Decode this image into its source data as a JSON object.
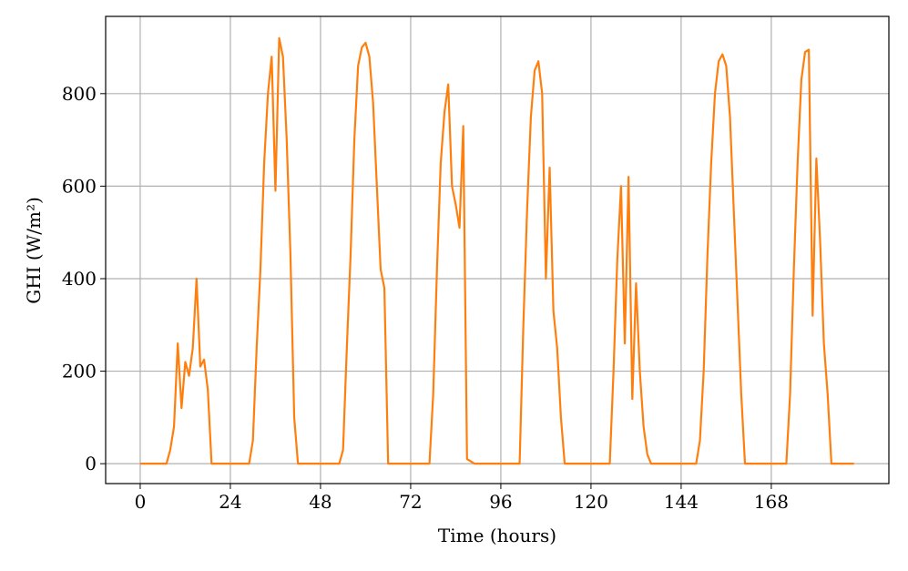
{
  "chart_data": {
    "type": "line",
    "xlabel": "Time (hours)",
    "ylabel": "GHI (W/m²)",
    "x": [
      0,
      1,
      2,
      3,
      4,
      5,
      6,
      7,
      8,
      9,
      10,
      11,
      12,
      13,
      14,
      15,
      16,
      17,
      18,
      19,
      20,
      21,
      22,
      23,
      24,
      25,
      26,
      27,
      28,
      29,
      30,
      31,
      32,
      33,
      34,
      35,
      36,
      37,
      38,
      39,
      40,
      41,
      42,
      43,
      44,
      45,
      46,
      47,
      48,
      49,
      50,
      51,
      52,
      53,
      54,
      55,
      56,
      57,
      58,
      59,
      60,
      61,
      62,
      63,
      64,
      65,
      66,
      67,
      68,
      69,
      70,
      71,
      72,
      73,
      74,
      75,
      76,
      77,
      78,
      79,
      80,
      81,
      82,
      83,
      84,
      85,
      86,
      87,
      88,
      89,
      90,
      91,
      92,
      93,
      94,
      95,
      96,
      97,
      98,
      99,
      100,
      101,
      102,
      103,
      104,
      105,
      106,
      107,
      108,
      109,
      110,
      111,
      112,
      113,
      114,
      115,
      116,
      117,
      118,
      119,
      120,
      121,
      122,
      123,
      124,
      125,
      126,
      127,
      128,
      129,
      130,
      131,
      132,
      133,
      134,
      135,
      136,
      137,
      138,
      139,
      140,
      141,
      142,
      143,
      144,
      145,
      146,
      147,
      148,
      149,
      150,
      151,
      152,
      153,
      154,
      155,
      156,
      157,
      158,
      159,
      160,
      161,
      162,
      163,
      164,
      165,
      166,
      167,
      168,
      169,
      170,
      171,
      172,
      173,
      174,
      175,
      176,
      177,
      178,
      179,
      180,
      181,
      182,
      183,
      184,
      185,
      186,
      187,
      188,
      189,
      190
    ],
    "series": [
      {
        "name": "GHI",
        "color": "#ff7f0e",
        "values": [
          0,
          0,
          0,
          0,
          0,
          0,
          0,
          0,
          30,
          80,
          260,
          120,
          220,
          190,
          250,
          400,
          210,
          225,
          160,
          0,
          0,
          0,
          0,
          0,
          0,
          0,
          0,
          0,
          0,
          0,
          50,
          250,
          420,
          650,
          800,
          880,
          590,
          920,
          880,
          700,
          450,
          100,
          0,
          0,
          0,
          0,
          0,
          0,
          0,
          0,
          0,
          0,
          0,
          0,
          30,
          250,
          450,
          700,
          860,
          900,
          910,
          880,
          780,
          600,
          420,
          380,
          0,
          0,
          0,
          0,
          0,
          0,
          0,
          0,
          0,
          0,
          0,
          0,
          150,
          420,
          650,
          760,
          820,
          600,
          560,
          510,
          730,
          10,
          5,
          0,
          0,
          0,
          0,
          0,
          0,
          0,
          0,
          0,
          0,
          0,
          0,
          0,
          300,
          550,
          750,
          850,
          870,
          800,
          400,
          640,
          330,
          250,
          100,
          0,
          0,
          0,
          0,
          0,
          0,
          0,
          0,
          0,
          0,
          0,
          0,
          0,
          200,
          440,
          600,
          260,
          620,
          140,
          390,
          200,
          80,
          20,
          0,
          0,
          0,
          0,
          0,
          0,
          0,
          0,
          0,
          0,
          0,
          0,
          0,
          50,
          200,
          450,
          650,
          800,
          870,
          885,
          860,
          750,
          550,
          350,
          150,
          0,
          0,
          0,
          0,
          0,
          0,
          0,
          0,
          0,
          0,
          0,
          0,
          150,
          420,
          650,
          830,
          890,
          895,
          320,
          660,
          480,
          260,
          150,
          0,
          0,
          0,
          0,
          0,
          0,
          0
        ]
      }
    ],
    "xlim": [
      -9.2,
      199.3
    ],
    "ylim": [
      -43,
      967
    ],
    "xticks": [
      0,
      24,
      48,
      72,
      96,
      120,
      144,
      168
    ],
    "yticks": [
      0,
      200,
      400,
      600,
      800
    ],
    "grid": true
  }
}
